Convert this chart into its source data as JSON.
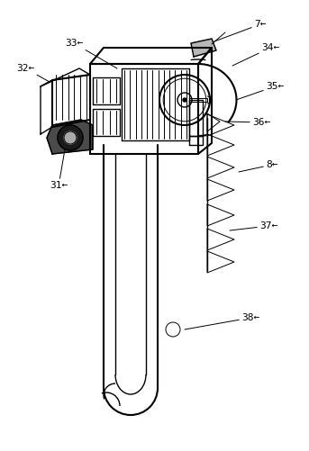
{
  "bg_color": "#ffffff",
  "line_color": "#000000",
  "lw_thin": 0.7,
  "lw_med": 1.0,
  "lw_thick": 1.5,
  "label_fontsize": 8,
  "fig_width": 3.43,
  "fig_height": 5.01,
  "dpi": 100
}
